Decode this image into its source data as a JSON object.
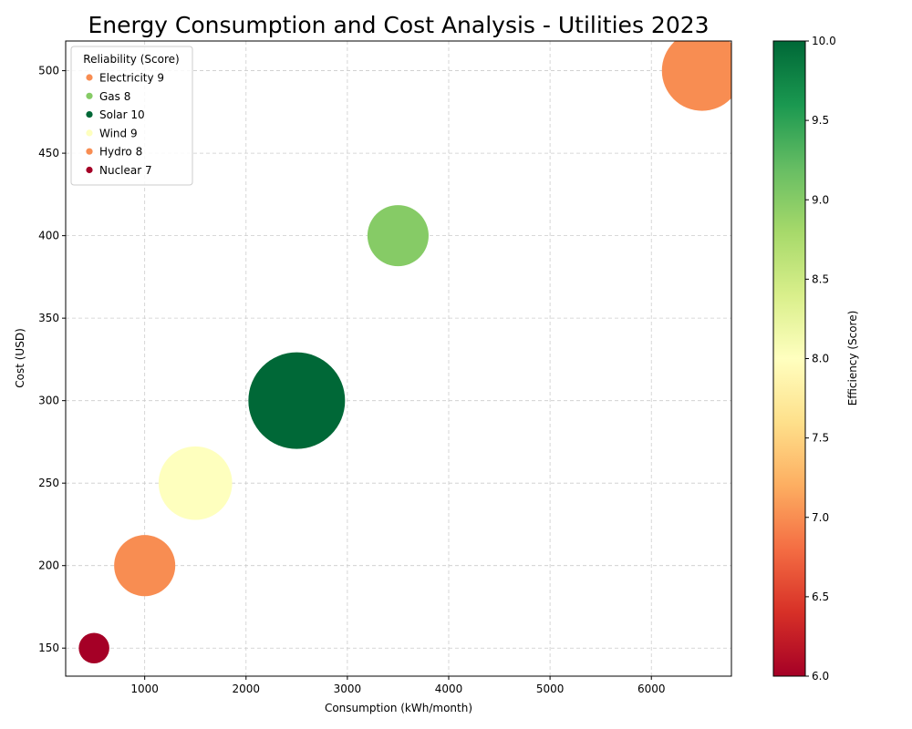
{
  "chart_data": {
    "type": "scatter",
    "title": "Energy Consumption and Cost Analysis - Utilities 2023",
    "xlabel": "Consumption (kWh/month)",
    "ylabel": "Cost (USD)",
    "xlim": [
      220,
      6790
    ],
    "ylim": [
      133,
      518
    ],
    "xticks": [
      1000,
      2000,
      3000,
      4000,
      5000,
      6000
    ],
    "yticks": [
      150,
      200,
      250,
      300,
      350,
      400,
      450,
      500
    ],
    "grid": true,
    "legend_title": "Reliability (Score)",
    "legend_position": "top-left",
    "colorbar": {
      "label": "Efficiency (Score)",
      "min": 6.0,
      "max": 10.0,
      "ticks": [
        "6.0",
        "6.5",
        "7.0",
        "7.5",
        "8.0",
        "8.5",
        "9.0",
        "9.5",
        "10.0"
      ],
      "colormap": "RdYlGn"
    },
    "points": [
      {
        "label": "Electricity 9",
        "x": 1000,
        "y": 200,
        "color": "#f88d52",
        "bubble_size": 0.4
      },
      {
        "label": "Gas 8",
        "x": 3500,
        "y": 400,
        "color": "#86cb66",
        "bubble_size": 0.4
      },
      {
        "label": "Solar 10",
        "x": 2500,
        "y": 300,
        "color": "#006837",
        "bubble_size": 1.0
      },
      {
        "label": "Wind 9",
        "x": 1500,
        "y": 250,
        "color": "#feffbe",
        "bubble_size": 0.58
      },
      {
        "label": "Hydro 8",
        "x": 6500,
        "y": 500,
        "color": "#f88d52",
        "bubble_size": 0.69
      },
      {
        "label": "Nuclear 7",
        "x": 500,
        "y": 150,
        "color": "#a50026",
        "bubble_size": 0.1
      }
    ]
  }
}
